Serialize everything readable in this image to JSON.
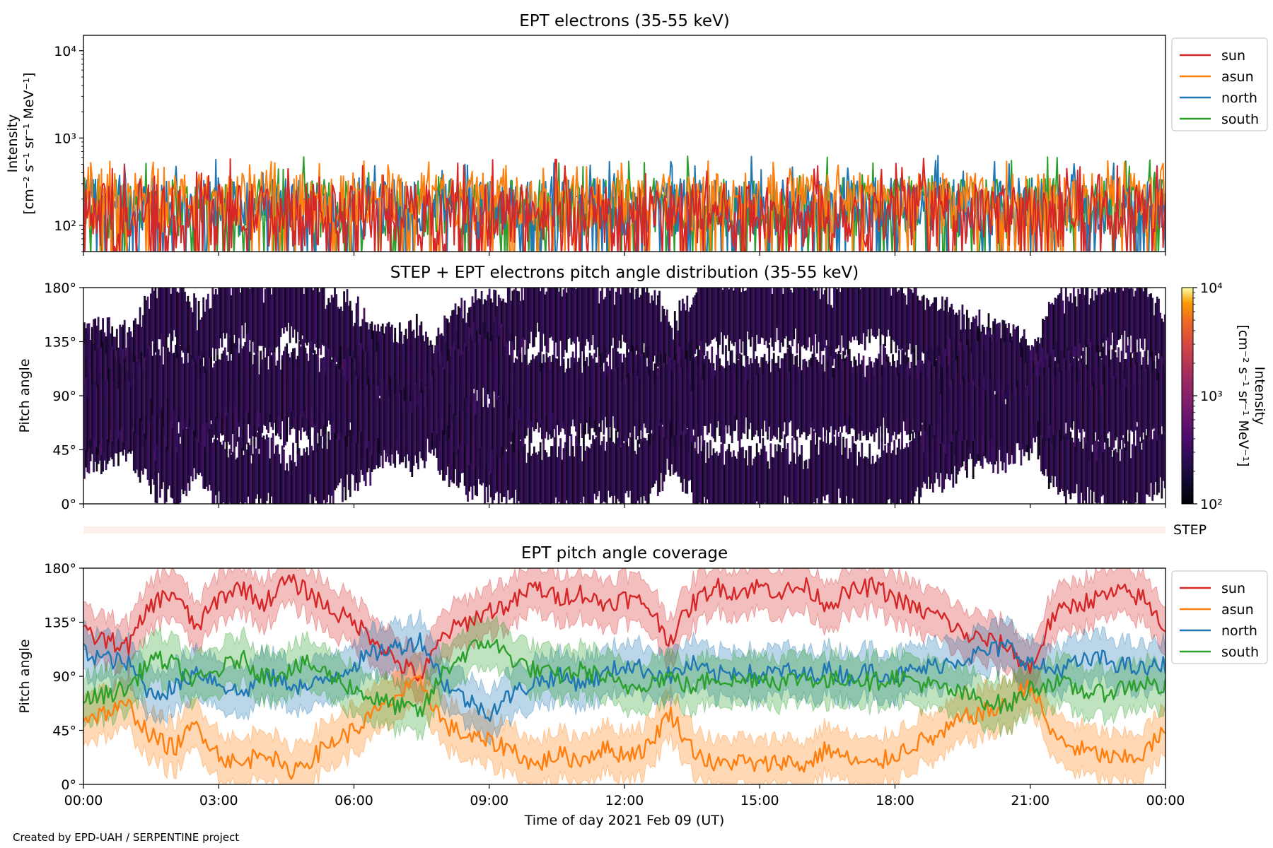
{
  "chart_data": [
    {
      "id": "intensity",
      "type": "line",
      "title": "EPT electrons (35-55 keV)",
      "ylabel_line1": "Intensity",
      "ylabel_line2": "[cm⁻² s⁻¹ sr⁻¹ MeV⁻¹]",
      "yscale": "log",
      "ylim": [
        50,
        15000
      ],
      "yticks": [
        {
          "value": 100,
          "label": "10²"
        },
        {
          "value": 1000,
          "label": "10³"
        },
        {
          "value": 10000,
          "label": "10⁴"
        }
      ],
      "x_range_hours": [
        0,
        24
      ],
      "legend_placement": "outside-right-top",
      "series": [
        {
          "name": "sun",
          "color": "#d62728",
          "typical_range": [
            55,
            300
          ],
          "peak": 600
        },
        {
          "name": "asun",
          "color": "#ff7f0e",
          "typical_range": [
            80,
            400
          ],
          "peak": 550
        },
        {
          "name": "north",
          "color": "#1f77b4",
          "typical_range": [
            70,
            350
          ],
          "peak": 650
        },
        {
          "name": "south",
          "color": "#2ca02c",
          "typical_range": [
            70,
            350
          ],
          "peak": 650
        }
      ]
    },
    {
      "id": "pad",
      "type": "heatmap",
      "title": "STEP + EPT electrons pitch angle distribution (35-55 keV)",
      "ylabel": "Pitch angle",
      "ylim": [
        0,
        180
      ],
      "yticks": [
        {
          "value": 0,
          "label": "0°"
        },
        {
          "value": 45,
          "label": "45°"
        },
        {
          "value": 90,
          "label": "90°"
        },
        {
          "value": 135,
          "label": "135°"
        },
        {
          "value": 180,
          "label": "180°"
        }
      ],
      "x_range_hours": [
        0,
        24
      ],
      "colorbar": {
        "label_line1": "Intensity",
        "label_line2": "[cm⁻² s⁻¹ sr⁻¹ MeV⁻¹]",
        "scale": "log",
        "range": [
          100,
          10000
        ],
        "ticks": [
          {
            "value": 100,
            "label": "10²"
          },
          {
            "value": 1000,
            "label": "10³"
          },
          {
            "value": 10000,
            "label": "10⁴"
          }
        ],
        "colormap": "inferno",
        "data_color_range": [
          100,
          400
        ]
      }
    },
    {
      "id": "step_strip",
      "type": "heatmap",
      "label": "STEP",
      "color": "#fdf0ea"
    },
    {
      "id": "coverage",
      "type": "line",
      "title": "EPT pitch angle coverage",
      "ylabel": "Pitch angle",
      "xlabel": "Time of day 2021 Feb 09 (UT)",
      "ylim": [
        0,
        180
      ],
      "yticks": [
        {
          "value": 0,
          "label": "0°"
        },
        {
          "value": 45,
          "label": "45°"
        },
        {
          "value": 90,
          "label": "90°"
        },
        {
          "value": 135,
          "label": "135°"
        },
        {
          "value": 180,
          "label": "180°"
        }
      ],
      "xticks": [
        {
          "value": 0,
          "label": "00:00"
        },
        {
          "value": 3,
          "label": "03:00"
        },
        {
          "value": 6,
          "label": "06:00"
        },
        {
          "value": 9,
          "label": "09:00"
        },
        {
          "value": 12,
          "label": "12:00"
        },
        {
          "value": 15,
          "label": "15:00"
        },
        {
          "value": 18,
          "label": "18:00"
        },
        {
          "value": 21,
          "label": "21:00"
        },
        {
          "value": 24,
          "label": "00:00"
        }
      ],
      "x_range_hours": [
        0,
        24
      ],
      "legend_placement": "outside-right-top",
      "band_halfwidth_deg": 20,
      "series": [
        {
          "name": "sun",
          "color": "#d62728",
          "points": [
            [
              0,
              125
            ],
            [
              1,
              115
            ],
            [
              1.5,
              150
            ],
            [
              2,
              160
            ],
            [
              2.5,
              130
            ],
            [
              3,
              155
            ],
            [
              3.5,
              165
            ],
            [
              4,
              150
            ],
            [
              4.5,
              170
            ],
            [
              5,
              160
            ],
            [
              5.5,
              145
            ],
            [
              6,
              135
            ],
            [
              6.5,
              120
            ],
            [
              7,
              100
            ],
            [
              7.5,
              90
            ],
            [
              8,
              125
            ],
            [
              8.5,
              135
            ],
            [
              9,
              145
            ],
            [
              9.5,
              150
            ],
            [
              10,
              165
            ],
            [
              10.5,
              155
            ],
            [
              11,
              160
            ],
            [
              11.5,
              150
            ],
            [
              12,
              155
            ],
            [
              12.5,
              150
            ],
            [
              13,
              120
            ],
            [
              13.5,
              150
            ],
            [
              14,
              165
            ],
            [
              14.5,
              160
            ],
            [
              15,
              165
            ],
            [
              15.5,
              160
            ],
            [
              16,
              165
            ],
            [
              16.5,
              150
            ],
            [
              17,
              160
            ],
            [
              17.5,
              165
            ],
            [
              18,
              155
            ],
            [
              18.5,
              145
            ],
            [
              19,
              140
            ],
            [
              19.5,
              125
            ],
            [
              20,
              120
            ],
            [
              20.5,
              115
            ],
            [
              21,
              95
            ],
            [
              21.5,
              140
            ],
            [
              22,
              150
            ],
            [
              22.5,
              155
            ],
            [
              23,
              160
            ],
            [
              23.5,
              155
            ],
            [
              24,
              130
            ]
          ]
        },
        {
          "name": "asun",
          "color": "#ff7f0e",
          "points": [
            [
              0,
              55
            ],
            [
              1,
              65
            ],
            [
              1.5,
              40
            ],
            [
              2,
              30
            ],
            [
              2.5,
              50
            ],
            [
              3,
              25
            ],
            [
              3.5,
              15
            ],
            [
              4,
              30
            ],
            [
              4.5,
              10
            ],
            [
              5,
              20
            ],
            [
              5.5,
              35
            ],
            [
              6,
              45
            ],
            [
              6.5,
              60
            ],
            [
              7,
              75
            ],
            [
              7.5,
              85
            ],
            [
              8,
              50
            ],
            [
              8.5,
              40
            ],
            [
              9,
              35
            ],
            [
              9.5,
              30
            ],
            [
              10,
              15
            ],
            [
              10.5,
              25
            ],
            [
              11,
              20
            ],
            [
              11.5,
              30
            ],
            [
              12,
              25
            ],
            [
              12.5,
              30
            ],
            [
              13,
              60
            ],
            [
              13.5,
              30
            ],
            [
              14,
              15
            ],
            [
              14.5,
              20
            ],
            [
              15,
              15
            ],
            [
              15.5,
              20
            ],
            [
              16,
              15
            ],
            [
              16.5,
              30
            ],
            [
              17,
              20
            ],
            [
              17.5,
              15
            ],
            [
              18,
              25
            ],
            [
              18.5,
              35
            ],
            [
              19,
              40
            ],
            [
              19.5,
              55
            ],
            [
              20,
              60
            ],
            [
              20.5,
              65
            ],
            [
              21,
              85
            ],
            [
              21.5,
              40
            ],
            [
              22,
              30
            ],
            [
              22.5,
              25
            ],
            [
              23,
              20
            ],
            [
              23.5,
              25
            ],
            [
              24,
              45
            ]
          ]
        },
        {
          "name": "north",
          "color": "#1f77b4",
          "points": [
            [
              0,
              110
            ],
            [
              1,
              100
            ],
            [
              1.5,
              75
            ],
            [
              2,
              80
            ],
            [
              2.5,
              95
            ],
            [
              3,
              85
            ],
            [
              3.5,
              75
            ],
            [
              4,
              90
            ],
            [
              4.5,
              85
            ],
            [
              5,
              80
            ],
            [
              5.5,
              90
            ],
            [
              6,
              100
            ],
            [
              6.5,
              110
            ],
            [
              7,
              115
            ],
            [
              7.5,
              120
            ],
            [
              8,
              85
            ],
            [
              8.5,
              70
            ],
            [
              9,
              60
            ],
            [
              9.5,
              75
            ],
            [
              10,
              85
            ],
            [
              10.5,
              90
            ],
            [
              11,
              85
            ],
            [
              11.5,
              90
            ],
            [
              12,
              100
            ],
            [
              12.5,
              95
            ],
            [
              13,
              90
            ],
            [
              13.5,
              100
            ],
            [
              14,
              90
            ],
            [
              14.5,
              95
            ],
            [
              15,
              90
            ],
            [
              15.5,
              95
            ],
            [
              16,
              90
            ],
            [
              16.5,
              95
            ],
            [
              17,
              90
            ],
            [
              17.5,
              95
            ],
            [
              18,
              90
            ],
            [
              18.5,
              95
            ],
            [
              19,
              100
            ],
            [
              19.5,
              105
            ],
            [
              20,
              110
            ],
            [
              20.5,
              115
            ],
            [
              21,
              100
            ],
            [
              21.5,
              95
            ],
            [
              22,
              100
            ],
            [
              22.5,
              105
            ],
            [
              23,
              100
            ],
            [
              23.5,
              95
            ],
            [
              24,
              100
            ]
          ]
        },
        {
          "name": "south",
          "color": "#2ca02c",
          "points": [
            [
              0,
              70
            ],
            [
              1,
              80
            ],
            [
              1.5,
              105
            ],
            [
              2,
              100
            ],
            [
              2.5,
              85
            ],
            [
              3,
              95
            ],
            [
              3.5,
              105
            ],
            [
              4,
              90
            ],
            [
              4.5,
              95
            ],
            [
              5,
              100
            ],
            [
              5.5,
              90
            ],
            [
              6,
              80
            ],
            [
              6.5,
              70
            ],
            [
              7,
              65
            ],
            [
              7.5,
              60
            ],
            [
              8,
              95
            ],
            [
              8.5,
              110
            ],
            [
              9,
              120
            ],
            [
              9.5,
              105
            ],
            [
              10,
              95
            ],
            [
              10.5,
              90
            ],
            [
              11,
              95
            ],
            [
              11.5,
              90
            ],
            [
              12,
              80
            ],
            [
              12.5,
              85
            ],
            [
              13,
              90
            ],
            [
              13.5,
              80
            ],
            [
              14,
              90
            ],
            [
              14.5,
              85
            ],
            [
              15,
              90
            ],
            [
              15.5,
              85
            ],
            [
              16,
              90
            ],
            [
              16.5,
              85
            ],
            [
              17,
              90
            ],
            [
              17.5,
              85
            ],
            [
              18,
              90
            ],
            [
              18.5,
              85
            ],
            [
              19,
              80
            ],
            [
              19.5,
              75
            ],
            [
              20,
              70
            ],
            [
              20.5,
              65
            ],
            [
              21,
              80
            ],
            [
              21.5,
              85
            ],
            [
              22,
              80
            ],
            [
              22.5,
              75
            ],
            [
              23,
              80
            ],
            [
              23.5,
              85
            ],
            [
              24,
              80
            ]
          ]
        }
      ]
    }
  ],
  "credit": "Created by EPD-UAH / SERPENTINE project"
}
